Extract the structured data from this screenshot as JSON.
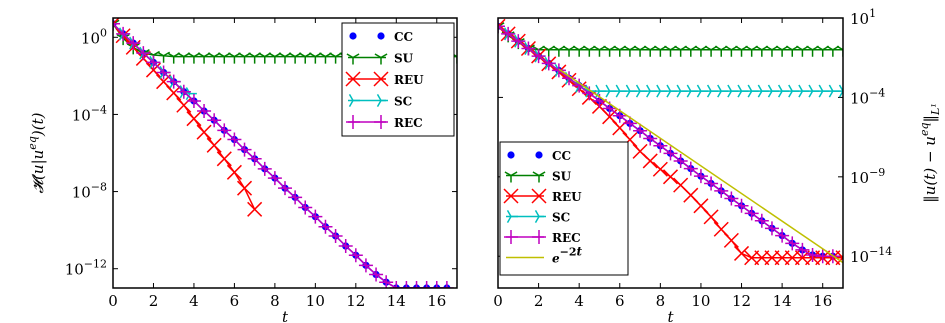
{
  "chart_data": [
    {
      "type": "line",
      "yscale": "log",
      "xlabel": "t",
      "ylabel": "𝓗(u|u^{eq})(t)",
      "xlim": [
        0,
        17
      ],
      "ylim": [
        1e-13,
        10
      ],
      "x_ticks": [
        0,
        2,
        4,
        6,
        8,
        10,
        12,
        14,
        16
      ],
      "y_ticks": [
        {
          "value": 1,
          "base": "10",
          "exp": "0"
        },
        {
          "value": 0.0001,
          "base": "10",
          "exp": "−4"
        },
        {
          "value": 1e-08,
          "base": "10",
          "exp": "−8"
        },
        {
          "value": 1e-12,
          "base": "10",
          "exp": "−12"
        }
      ],
      "legend": {
        "position": "top-right",
        "entries": [
          "CC",
          "SU",
          "REU",
          "SC",
          "REC"
        ]
      },
      "series": [
        {
          "name": "CC",
          "color": "#0000ff",
          "marker": "dot",
          "x": [
            0,
            0.5,
            1,
            1.5,
            2,
            2.5,
            3,
            3.5,
            4,
            4.5,
            5,
            5.5,
            6,
            6.5,
            7,
            7.5,
            8,
            8.5,
            9,
            9.5,
            10,
            10.5,
            11,
            11.5,
            12,
            12.5,
            13,
            13.5,
            14,
            14.5,
            15,
            15.5,
            16,
            16.5
          ],
          "y": [
            5,
            1.5,
            0.5,
            0.15,
            0.05,
            0.015,
            0.005,
            0.0015,
            0.0005,
            0.00015,
            5e-05,
            1.5e-05,
            5e-06,
            1.5e-06,
            5e-07,
            1.5e-07,
            5e-08,
            1.5e-08,
            5e-09,
            1.5e-09,
            5e-10,
            1.5e-10,
            5e-11,
            1.5e-11,
            5e-12,
            1.5e-12,
            5e-13,
            2e-13,
            1e-13,
            1e-13,
            1e-13,
            1e-13,
            1e-13,
            1e-13
          ]
        },
        {
          "name": "SU",
          "color": "#008000",
          "marker": "tri_down",
          "x": [
            0,
            0.5,
            1,
            1.5,
            2,
            2.5,
            3,
            3.5,
            4,
            4.5,
            5,
            5.5,
            6,
            6.5,
            7,
            7.5,
            8,
            8.5,
            9,
            9.5,
            10,
            10.5,
            11,
            11.5,
            12,
            12.5,
            13,
            13.5,
            14,
            14.5,
            15,
            15.5,
            16,
            16.5,
            17
          ],
          "y": [
            5,
            0.9,
            0.3,
            0.15,
            0.12,
            0.11,
            0.1,
            0.1,
            0.1,
            0.1,
            0.1,
            0.1,
            0.1,
            0.1,
            0.1,
            0.1,
            0.1,
            0.1,
            0.1,
            0.1,
            0.1,
            0.1,
            0.1,
            0.1,
            0.1,
            0.1,
            0.1,
            0.1,
            0.1,
            0.1,
            0.1,
            0.1,
            0.1,
            0.1,
            0.1
          ]
        },
        {
          "name": "REU",
          "color": "#ff0000",
          "marker": "x",
          "x": [
            0,
            0.5,
            1,
            1.5,
            2,
            2.5,
            3,
            3.5,
            4,
            4.5,
            5,
            5.5,
            6,
            6.5,
            7
          ],
          "y": [
            5,
            1.2,
            0.3,
            0.08,
            0.02,
            0.005,
            0.0013,
            0.0003,
            6e-05,
            1.2e-05,
            2.5e-06,
            5e-07,
            1e-07,
            1.5e-08,
            1.2e-09
          ]
        },
        {
          "name": "SC",
          "color": "#00bfbf",
          "marker": "tri_right",
          "x": [
            0,
            0.5,
            1,
            1.5,
            2,
            2.5,
            3,
            3.5,
            3.8
          ],
          "y": [
            5,
            1.5,
            0.5,
            0.15,
            0.05,
            0.015,
            0.005,
            0.0015,
            0.0012
          ]
        },
        {
          "name": "REC",
          "color": "#bf00bf",
          "marker": "plus",
          "x": [
            0,
            0.5,
            1,
            1.5,
            2,
            2.5,
            3,
            3.5,
            4,
            4.5,
            5,
            5.5,
            6,
            6.5,
            7,
            7.5,
            8,
            8.5,
            9,
            9.5,
            10,
            10.5,
            11,
            11.5,
            12,
            12.5,
            13,
            13.5,
            14,
            14.5,
            15,
            15.5,
            16,
            16.5
          ],
          "y": [
            5,
            1.5,
            0.5,
            0.15,
            0.05,
            0.015,
            0.005,
            0.0015,
            0.0005,
            0.00015,
            5e-05,
            1.5e-05,
            5e-06,
            1.5e-06,
            5e-07,
            1.5e-07,
            5e-08,
            1.5e-08,
            5e-09,
            1.5e-09,
            5e-10,
            1.5e-10,
            5e-11,
            1.5e-11,
            5e-12,
            1.5e-12,
            5e-13,
            2e-13,
            1e-13,
            1e-13,
            1e-13,
            1e-13,
            1e-13,
            1e-13
          ]
        }
      ]
    },
    {
      "type": "line",
      "yscale": "log",
      "xlabel": "t",
      "ylabel": "‖u(t) − u^{eq}‖_{L¹}",
      "y_axis_side": "right",
      "xlim": [
        0,
        17
      ],
      "ylim": [
        1e-16,
        10
      ],
      "x_ticks": [
        0,
        2,
        4,
        6,
        8,
        10,
        12,
        14,
        16
      ],
      "y_ticks": [
        {
          "value": 10,
          "base": "10",
          "exp": "1"
        },
        {
          "value": 0.0001,
          "base": "10",
          "exp": "−4"
        },
        {
          "value": 1e-09,
          "base": "10",
          "exp": "−9"
        },
        {
          "value": 1e-14,
          "base": "10",
          "exp": "−14"
        }
      ],
      "legend": {
        "position": "lower-left",
        "entries": [
          "CC",
          "SU",
          "REU",
          "SC",
          "REC",
          "e^{−2t}"
        ]
      },
      "series": [
        {
          "name": "CC",
          "color": "#0000ff",
          "marker": "dot",
          "x": [
            0,
            0.5,
            1,
            1.5,
            2,
            2.5,
            3,
            3.5,
            4,
            4.5,
            5,
            5.5,
            6,
            6.5,
            7,
            7.5,
            8,
            8.5,
            9,
            9.5,
            10,
            10.5,
            11,
            11.5,
            12,
            12.5,
            13,
            13.5,
            14,
            14.5,
            15,
            15.5,
            16,
            16.5
          ],
          "y": [
            3,
            1,
            0.35,
            0.12,
            0.04,
            0.014,
            0.005,
            0.0016,
            0.00055,
            0.00018,
            6e-05,
            2e-05,
            7e-06,
            2.3e-06,
            8e-07,
            2.6e-07,
            9e-08,
            3e-08,
            1e-08,
            3.3e-09,
            1.1e-09,
            3.8e-10,
            1.3e-10,
            4.3e-11,
            1.5e-11,
            5e-12,
            1.7e-12,
            5.7e-13,
            2e-13,
            6.5e-14,
            2.5e-14,
            1.2e-14,
            1e-14,
            1e-14
          ]
        },
        {
          "name": "SU",
          "color": "#008000",
          "marker": "tri_down",
          "x": [
            0,
            0.5,
            1,
            1.5,
            2,
            2.5,
            3,
            3.5,
            4,
            4.5,
            5,
            5.5,
            6,
            6.5,
            7,
            7.5,
            8,
            8.5,
            9,
            9.5,
            10,
            10.5,
            11,
            11.5,
            12,
            12.5,
            13,
            13.5,
            14,
            14.5,
            15,
            15.5,
            16,
            16.5,
            17
          ],
          "y": [
            3,
            0.8,
            0.3,
            0.12,
            0.1,
            0.1,
            0.1,
            0.1,
            0.1,
            0.1,
            0.1,
            0.1,
            0.1,
            0.1,
            0.1,
            0.1,
            0.1,
            0.1,
            0.1,
            0.1,
            0.1,
            0.1,
            0.1,
            0.1,
            0.1,
            0.1,
            0.1,
            0.1,
            0.1,
            0.1,
            0.1,
            0.1,
            0.1,
            0.1,
            0.1
          ]
        },
        {
          "name": "REU",
          "color": "#ff0000",
          "marker": "x",
          "x": [
            0,
            0.5,
            1,
            1.5,
            2,
            2.5,
            3,
            3.5,
            4,
            4.5,
            5,
            5.5,
            6,
            6.5,
            7,
            7.5,
            8,
            8.5,
            9,
            9.5,
            10,
            10.5,
            11,
            11.5,
            12,
            12.5,
            13,
            13.5,
            14,
            14.5,
            15,
            15.5,
            16,
            16.5,
            17
          ],
          "y": [
            3,
            1,
            0.35,
            0.12,
            0.04,
            0.013,
            0.004,
            0.0012,
            0.00035,
            0.0001,
            2.7e-05,
            6e-06,
            1.2e-06,
            2.2e-07,
            4e-08,
            1e-08,
            3e-09,
            1e-09,
            3e-10,
            7e-11,
            1.5e-11,
            3e-12,
            5e-13,
            1e-13,
            1.5e-14,
            8e-15,
            8e-15,
            8e-15,
            8e-15,
            8e-15,
            8e-15,
            8e-15,
            8e-15,
            8e-15,
            8e-15
          ]
        },
        {
          "name": "SC",
          "color": "#00bfbf",
          "marker": "tri_right",
          "x": [
            0,
            0.5,
            1,
            1.5,
            2,
            2.5,
            3,
            3.5,
            4,
            4.5,
            5,
            5.5,
            6,
            6.5,
            7,
            7.5,
            8,
            8.5,
            9,
            9.5,
            10,
            10.5,
            11,
            11.5,
            12,
            12.5,
            13,
            13.5,
            14,
            14.5,
            15,
            15.5,
            16,
            16.5,
            17
          ],
          "y": [
            3,
            1,
            0.35,
            0.12,
            0.04,
            0.014,
            0.005,
            0.0016,
            0.0005,
            0.00025,
            0.00025,
            0.00025,
            0.00025,
            0.00025,
            0.00025,
            0.00025,
            0.00025,
            0.00025,
            0.00025,
            0.00025,
            0.00025,
            0.00025,
            0.00025,
            0.00025,
            0.00025,
            0.00025,
            0.00025,
            0.00025,
            0.00025,
            0.00025,
            0.00025,
            0.00025,
            0.00025,
            0.00025,
            0.00025
          ]
        },
        {
          "name": "REC",
          "color": "#bf00bf",
          "marker": "plus",
          "x": [
            0,
            0.5,
            1,
            1.5,
            2,
            2.5,
            3,
            3.5,
            4,
            4.5,
            5,
            5.5,
            6,
            6.5,
            7,
            7.5,
            8,
            8.5,
            9,
            9.5,
            10,
            10.5,
            11,
            11.5,
            12,
            12.5,
            13,
            13.5,
            14,
            14.5,
            15,
            15.5,
            16,
            16.5
          ],
          "y": [
            3,
            1,
            0.35,
            0.12,
            0.04,
            0.014,
            0.005,
            0.0016,
            0.00055,
            0.00018,
            6e-05,
            2e-05,
            7e-06,
            2.3e-06,
            8e-07,
            2.6e-07,
            9e-08,
            3e-08,
            1e-08,
            3.3e-09,
            1.1e-09,
            3.8e-10,
            1.3e-10,
            4.3e-11,
            1.5e-11,
            5e-12,
            1.7e-12,
            5.7e-13,
            2e-13,
            6.5e-14,
            2.5e-14,
            1.2e-14,
            1e-14,
            1e-14
          ]
        },
        {
          "name": "e^{−2t}",
          "color": "#bfbf00",
          "marker": "none",
          "x": [
            3,
            17
          ],
          "y": [
            0.006,
            4e-15
          ]
        }
      ]
    }
  ]
}
